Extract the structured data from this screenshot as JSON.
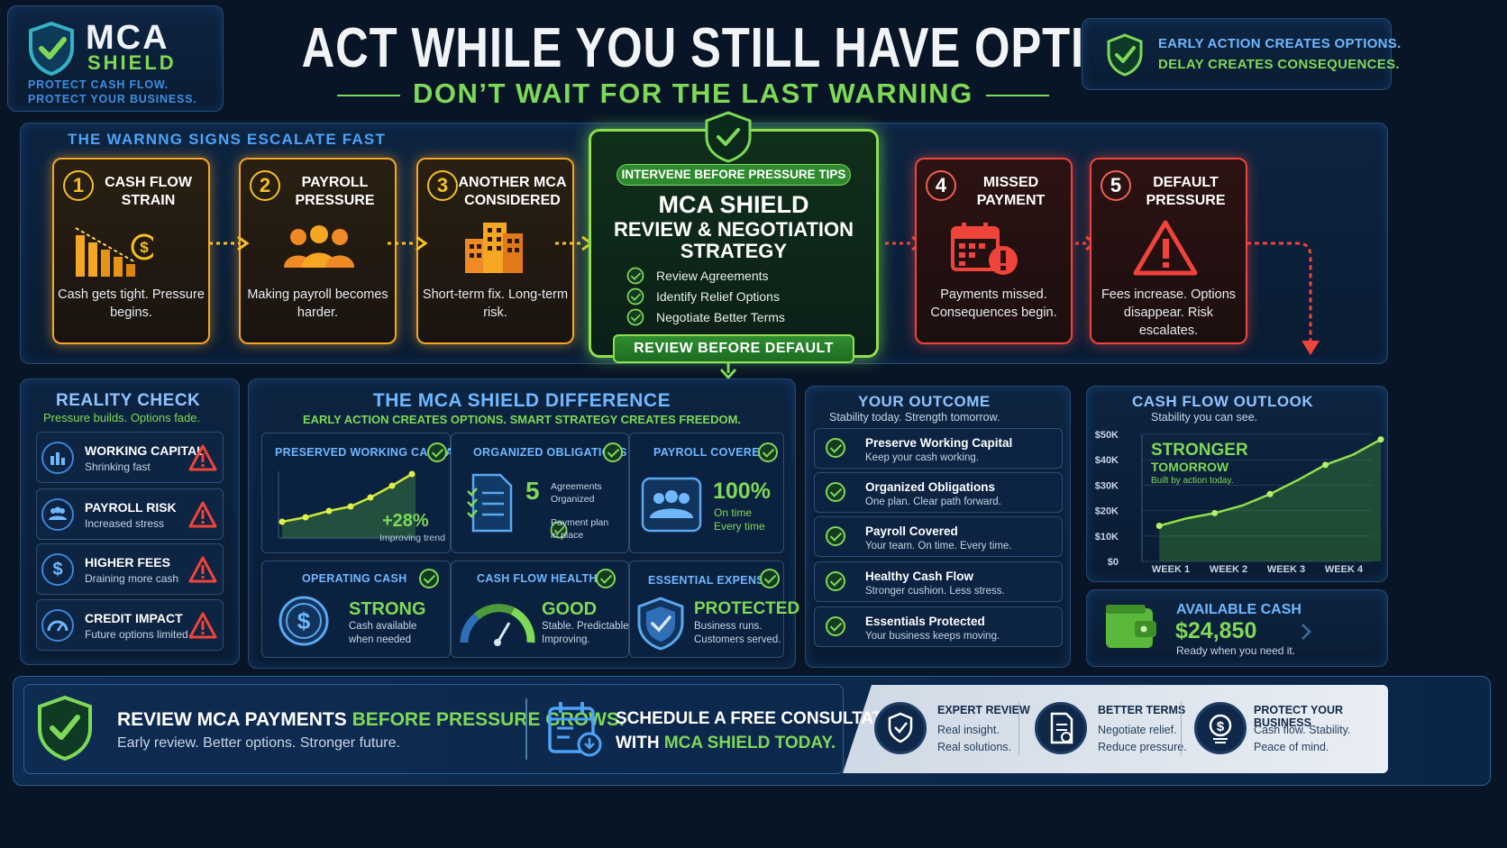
{
  "brand": {
    "name_top": "MCA",
    "name_bottom": "SHIELD",
    "tagline1": "PROTECT CASH FLOW.",
    "tagline2": "PROTECT YOUR BUSINESS."
  },
  "header": {
    "headline": "ACT WHILE YOU STILL HAVE OPTIONS.",
    "subheadline": "DON’T WAIT FOR THE LAST WARNING",
    "callout_line1": "EARLY ACTION CREATES OPTIONS.",
    "callout_line2": "DELAY CREATES CONSEQUENCES."
  },
  "warning": {
    "title": "THE WARNNG SIGNS ESCALATE FAST",
    "steps": [
      {
        "num": "1",
        "title": "CASH FLOW STRAIN",
        "desc": "Cash gets tight. Pressure begins.",
        "icon": "declining-bars-icon"
      },
      {
        "num": "2",
        "title": "PAYROLL PRESSURE",
        "desc": "Making payroll becomes harder.",
        "icon": "people-icon"
      },
      {
        "num": "3",
        "title": "ANOTHER MCA CONSIDERED",
        "desc": "Short-term fix. Long-term risk.",
        "icon": "buildings-icon"
      },
      {
        "num": "4",
        "title": "MISSED PAYMENT",
        "desc": "Payments missed. Consequences begin.",
        "icon": "calendar-alert-icon"
      },
      {
        "num": "5",
        "title": "DEFAULT PRESSURE",
        "desc": "Fees increase. Options disappear. Risk escalates.",
        "icon": "warning-triangle-icon"
      }
    ]
  },
  "center": {
    "badge": "INTERVENE BEFORE PRESSURE TIPS",
    "title1": "MCA SHIELD",
    "title2": "REVIEW & NEGOTIATION",
    "title3": "STRATEGY",
    "items": [
      "Review Agreements",
      "Identify Relief Options",
      "Negotiate Better Terms"
    ],
    "button": "REVIEW BEFORE DEFAULT"
  },
  "reality": {
    "title": "REALITY CHECK",
    "subtitle": "Pressure builds. Options fade.",
    "items": [
      {
        "title": "WORKING CAPITAL",
        "sub": "Shrinking fast"
      },
      {
        "title": "PAYROLL RISK",
        "sub": "Increased stress"
      },
      {
        "title": "HIGHER FEES",
        "sub": "Draining more cash"
      },
      {
        "title": "CREDIT IMPACT",
        "sub": "Future options limited"
      }
    ]
  },
  "difference": {
    "title": "THE MCA SHIELD DIFFERENCE",
    "subtitle": "EARLY ACTION CREATES OPTIONS. SMART STRATEGY CREATES FREEDOM.",
    "working_capital": {
      "caption": "PRESERVED WORKING CAPITAL",
      "value": "+28%",
      "note": "Improving trend"
    },
    "obligations": {
      "caption": "ORGANIZED OBLIGATIONS",
      "count": "5",
      "label1": "Agreements",
      "label2": "Organized",
      "plan1": "Payment plan",
      "plan2": "in place"
    },
    "payroll": {
      "caption": "PAYROLL COVERED",
      "value": "100%",
      "line1": "On time",
      "line2": "Every time"
    },
    "operating": {
      "caption": "OPERATING CASH",
      "value": "STRONG",
      "line1": "Cash available",
      "line2": "when needed"
    },
    "health": {
      "caption": "CASH FLOW HEALTH",
      "value": "GOOD",
      "line1": "Stable. Predictable.",
      "line2": "Improving."
    },
    "essentials": {
      "caption": "ESSENTIAL EXPENSES",
      "value": "PROTECTED",
      "line1": "Business runs.",
      "line2": "Customers served."
    }
  },
  "outcome": {
    "title": "YOUR OUTCOME",
    "subtitle": "Stability today. Strength tomorrow.",
    "items": [
      {
        "title": "Preserve Working Capital",
        "sub": "Keep your cash working."
      },
      {
        "title": "Organized Obligations",
        "sub": "One plan. Clear path forward."
      },
      {
        "title": "Payroll Covered",
        "sub": "Your team. On time. Every time."
      },
      {
        "title": "Healthy Cash Flow",
        "sub": "Stronger cushion. Less stress."
      },
      {
        "title": "Essentials Protected",
        "sub": "Your business keeps moving."
      }
    ]
  },
  "outlook": {
    "title": "CASH FLOW OUTLOOK",
    "subtitle": "Stability you can see.",
    "label1": "STRONGER",
    "label2": "TOMORROW",
    "label3": "Built by action today.",
    "available_title": "AVAILABLE CASH",
    "available_value": "$24,850",
    "available_note": "Ready when you need it."
  },
  "chart_data": {
    "type": "line",
    "title": "CASH FLOW OUTLOOK",
    "categories": [
      "WEEK 1",
      "WEEK 2",
      "WEEK 3",
      "WEEK 4"
    ],
    "y_ticks": [
      "$0",
      "$10K",
      "$20K",
      "$30K",
      "$40K",
      "$50K"
    ],
    "ylim": [
      0,
      50000
    ],
    "x": [
      0,
      0.5,
      1,
      1.5,
      2,
      2.5,
      3,
      3.5,
      4
    ],
    "values": [
      14000,
      17000,
      19000,
      22000,
      26500,
      32000,
      38000,
      42000,
      48000
    ]
  },
  "footer": {
    "main1": "REVIEW MCA PAYMENTS ",
    "main2": "BEFORE PRESSURE GROWS.",
    "main_sub": "Early review. Better options. Stronger future.",
    "cta1": "SCHEDULE A FREE CONSULTATION",
    "cta2": "WITH ",
    "cta3": "MCA SHIELD TODAY.",
    "features": [
      {
        "title": "EXPERT REVIEW",
        "l1": "Real insight.",
        "l2": "Real solutions."
      },
      {
        "title": "BETTER TERMS",
        "l1": "Negotiate relief.",
        "l2": "Reduce pressure."
      },
      {
        "title": "PROTECT YOUR BUSINESS",
        "l1": "Cash flow. Stability.",
        "l2": "Peace of mind."
      }
    ]
  },
  "colors": {
    "green": "#7ed957",
    "orange": "#f5a623",
    "red": "#f0443a",
    "blue": "#6fb8ff",
    "background": "#071526"
  }
}
